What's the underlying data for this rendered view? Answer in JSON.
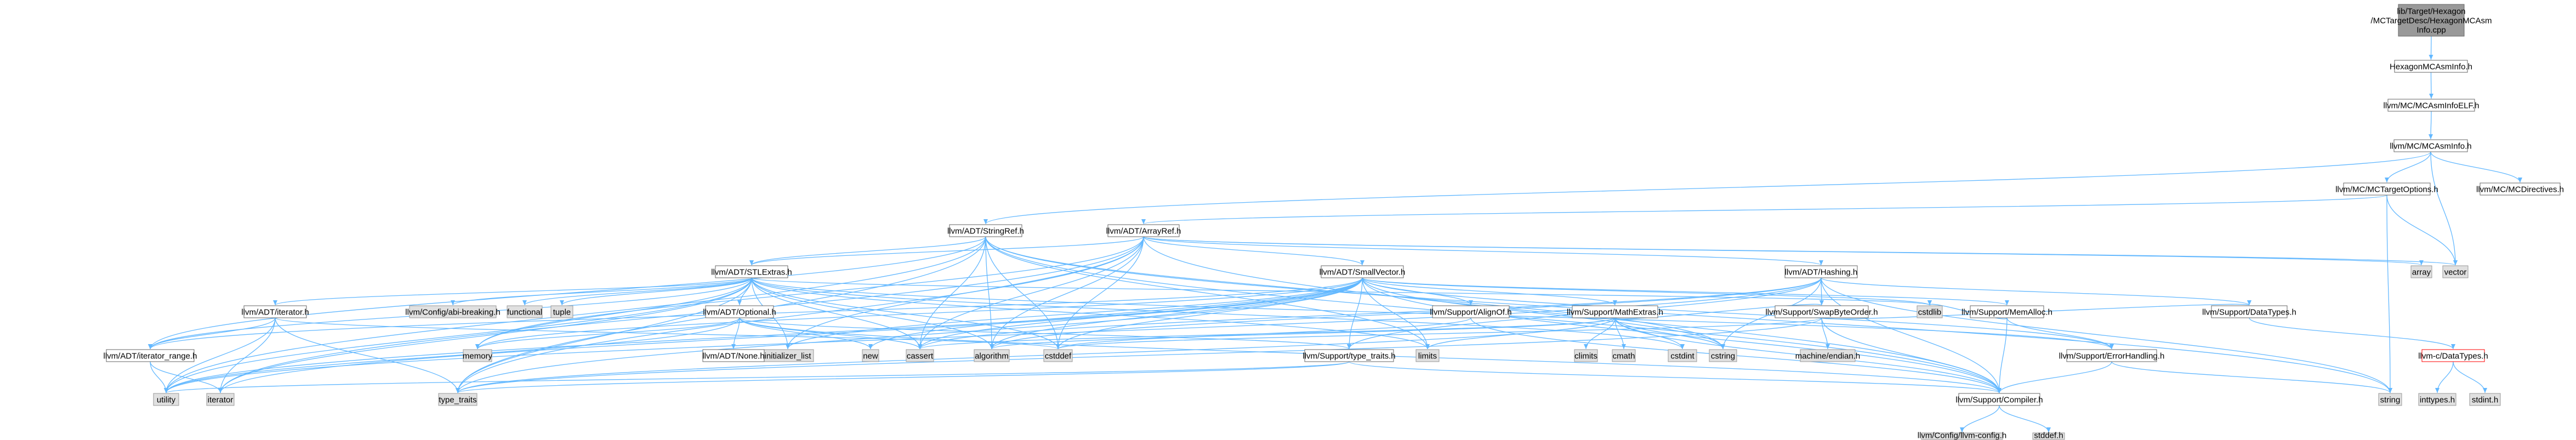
{
  "diagram": {
    "title": "lib/Target/Hexagon/MCTargetDesc/HexagonMCAsmInfo.cpp include dependency graph",
    "colors": {
      "edge": "#63B8FF",
      "root_fill": "#999999",
      "root_stroke": "#666666",
      "node_fill": "#ffffff",
      "node_stroke": "#666666",
      "system_fill": "#e0e0e0",
      "system_stroke": "#999999",
      "truncated_stroke": "#ff0000"
    },
    "nodes": [
      {
        "id": "root",
        "kind": "root",
        "lines": [
          "lib/Target/Hexagon",
          "/MCTargetDesc/HexagonMCAsm",
          "Info.cpp"
        ]
      },
      {
        "id": "hexagonmcasminfo_h",
        "kind": "file",
        "lines": [
          "HexagonMCAsmInfo.h"
        ]
      },
      {
        "id": "mcasminfoelf_h",
        "kind": "file",
        "lines": [
          "llvm/MC/MCAsmInfoELF.h"
        ]
      },
      {
        "id": "mcasminfo_h",
        "kind": "file",
        "lines": [
          "llvm/MC/MCAsmInfo.h"
        ]
      },
      {
        "id": "mctargetoptions_h",
        "kind": "file",
        "lines": [
          "llvm/MC/MCTargetOptions.h"
        ]
      },
      {
        "id": "mcdirectives_h",
        "kind": "file",
        "lines": [
          "llvm/MC/MCDirectives.h"
        ]
      },
      {
        "id": "stringref_h",
        "kind": "file",
        "lines": [
          "llvm/ADT/StringRef.h"
        ]
      },
      {
        "id": "arrayref_h",
        "kind": "file",
        "lines": [
          "llvm/ADT/ArrayRef.h"
        ]
      },
      {
        "id": "array",
        "kind": "system",
        "lines": [
          "array"
        ]
      },
      {
        "id": "vector",
        "kind": "system",
        "lines": [
          "vector"
        ]
      },
      {
        "id": "stlextras_h",
        "kind": "file",
        "lines": [
          "llvm/ADT/STLExtras.h"
        ]
      },
      {
        "id": "smallvector_h",
        "kind": "file",
        "lines": [
          "llvm/ADT/SmallVector.h"
        ]
      },
      {
        "id": "hashing_h",
        "kind": "file",
        "lines": [
          "llvm/ADT/Hashing.h"
        ]
      },
      {
        "id": "iterator_h",
        "kind": "file",
        "lines": [
          "llvm/ADT/iterator.h"
        ]
      },
      {
        "id": "configabi_h",
        "kind": "system",
        "lines": [
          "llvm/Config/abi-breaking.h"
        ]
      },
      {
        "id": "functional",
        "kind": "system",
        "lines": [
          "functional"
        ]
      },
      {
        "id": "tuple",
        "kind": "system",
        "lines": [
          "tuple"
        ]
      },
      {
        "id": "optional_h",
        "kind": "file",
        "lines": [
          "llvm/ADT/Optional.h"
        ]
      },
      {
        "id": "initializer_list",
        "kind": "system",
        "lines": [
          "initializer_list"
        ]
      },
      {
        "id": "alignof_h",
        "kind": "file",
        "lines": [
          "llvm/Support/AlignOf.h"
        ]
      },
      {
        "id": "mathextras_h",
        "kind": "file",
        "lines": [
          "llvm/Support/MathExtras.h"
        ]
      },
      {
        "id": "swapbyteorder_h",
        "kind": "file",
        "lines": [
          "llvm/Support/SwapByteOrder.h"
        ]
      },
      {
        "id": "memalloc_h",
        "kind": "file",
        "lines": [
          "llvm/Support/MemAlloc.h"
        ]
      },
      {
        "id": "datatypes_h",
        "kind": "file",
        "lines": [
          "llvm/Support/DataTypes.h"
        ]
      },
      {
        "id": "iterator_range_h",
        "kind": "file",
        "lines": [
          "llvm/ADT/iterator_range.h"
        ]
      },
      {
        "id": "memory",
        "kind": "system",
        "lines": [
          "memory"
        ]
      },
      {
        "id": "none_h",
        "kind": "file",
        "lines": [
          "llvm/ADT/None.h"
        ]
      },
      {
        "id": "new",
        "kind": "system",
        "lines": [
          "new"
        ]
      },
      {
        "id": "cassert",
        "kind": "system",
        "lines": [
          "cassert"
        ]
      },
      {
        "id": "algorithm",
        "kind": "system",
        "lines": [
          "algorithm"
        ]
      },
      {
        "id": "cstddef",
        "kind": "system",
        "lines": [
          "cstddef"
        ]
      },
      {
        "id": "type_traits_h",
        "kind": "file",
        "lines": [
          "llvm/Support/type_traits.h"
        ]
      },
      {
        "id": "limits",
        "kind": "system",
        "lines": [
          "limits"
        ]
      },
      {
        "id": "climits",
        "kind": "system",
        "lines": [
          "climits"
        ]
      },
      {
        "id": "cmath",
        "kind": "system",
        "lines": [
          "cmath"
        ]
      },
      {
        "id": "cstdint",
        "kind": "system",
        "lines": [
          "cstdint"
        ]
      },
      {
        "id": "cstring",
        "kind": "system",
        "lines": [
          "cstring"
        ]
      },
      {
        "id": "machine_endian",
        "kind": "system",
        "lines": [
          "machine/endian.h"
        ]
      },
      {
        "id": "cstdlib",
        "kind": "system",
        "lines": [
          "cstdlib"
        ]
      },
      {
        "id": "errorhandling_h",
        "kind": "file",
        "lines": [
          "llvm/Support/ErrorHandling.h"
        ]
      },
      {
        "id": "llvm_c_datatypes_h",
        "kind": "truncated",
        "lines": [
          "llvm-c/DataTypes.h"
        ]
      },
      {
        "id": "utility",
        "kind": "system",
        "lines": [
          "utility"
        ]
      },
      {
        "id": "iterator",
        "kind": "system",
        "lines": [
          "iterator"
        ]
      },
      {
        "id": "type_traits",
        "kind": "system",
        "lines": [
          "type_traits"
        ]
      },
      {
        "id": "compiler_h",
        "kind": "file",
        "lines": [
          "llvm/Support/Compiler.h"
        ]
      },
      {
        "id": "string",
        "kind": "system",
        "lines": [
          "string"
        ]
      },
      {
        "id": "inttypes_h",
        "kind": "system",
        "lines": [
          "inttypes.h"
        ]
      },
      {
        "id": "stdint_h",
        "kind": "system",
        "lines": [
          "stdint.h"
        ]
      },
      {
        "id": "llvm_config_h",
        "kind": "system",
        "lines": [
          "llvm/Config/llvm-config.h"
        ]
      },
      {
        "id": "stddef_h",
        "kind": "system",
        "lines": [
          "stddef.h"
        ]
      }
    ],
    "edges": [
      [
        "root",
        "hexagonmcasminfo_h"
      ],
      [
        "hexagonmcasminfo_h",
        "mcasminfoelf_h"
      ],
      [
        "mcasminfoelf_h",
        "mcasminfo_h"
      ],
      [
        "mcasminfo_h",
        "stringref_h"
      ],
      [
        "mcasminfo_h",
        "mcdirectives_h"
      ],
      [
        "mcasminfo_h",
        "mctargetoptions_h"
      ],
      [
        "mcasminfo_h",
        "vector"
      ],
      [
        "mctargetoptions_h",
        "arrayref_h"
      ],
      [
        "mctargetoptions_h",
        "string"
      ],
      [
        "mctargetoptions_h",
        "vector"
      ],
      [
        "stringref_h",
        "stlextras_h"
      ],
      [
        "stringref_h",
        "iterator_range_h"
      ],
      [
        "stringref_h",
        "compiler_h"
      ],
      [
        "stringref_h",
        "algorithm"
      ],
      [
        "stringref_h",
        "cassert"
      ],
      [
        "stringref_h",
        "cstddef"
      ],
      [
        "stringref_h",
        "cstring"
      ],
      [
        "stringref_h",
        "limits"
      ],
      [
        "stringref_h",
        "string"
      ],
      [
        "stringref_h",
        "type_traits"
      ],
      [
        "stringref_h",
        "utility"
      ],
      [
        "arrayref_h",
        "hashing_h"
      ],
      [
        "arrayref_h",
        "smallvector_h"
      ],
      [
        "arrayref_h",
        "stlextras_h"
      ],
      [
        "arrayref_h",
        "compiler_h"
      ],
      [
        "arrayref_h",
        "algorithm"
      ],
      [
        "arrayref_h",
        "array"
      ],
      [
        "arrayref_h",
        "cassert"
      ],
      [
        "arrayref_h",
        "cstddef"
      ],
      [
        "arrayref_h",
        "initializer_list"
      ],
      [
        "arrayref_h",
        "iterator"
      ],
      [
        "arrayref_h",
        "memory"
      ],
      [
        "arrayref_h",
        "type_traits"
      ],
      [
        "arrayref_h",
        "vector"
      ],
      [
        "stlextras_h",
        "iterator_h"
      ],
      [
        "stlextras_h",
        "iterator_range_h"
      ],
      [
        "stlextras_h",
        "optional_h"
      ],
      [
        "stlextras_h",
        "configabi_h"
      ],
      [
        "stlextras_h",
        "errorhandling_h"
      ],
      [
        "stlextras_h",
        "algorithm"
      ],
      [
        "stlextras_h",
        "cassert"
      ],
      [
        "stlextras_h",
        "cstddef"
      ],
      [
        "stlextras_h",
        "cstdint"
      ],
      [
        "stlextras_h",
        "cstdlib"
      ],
      [
        "stlextras_h",
        "functional"
      ],
      [
        "stlextras_h",
        "initializer_list"
      ],
      [
        "stlextras_h",
        "iterator"
      ],
      [
        "stlextras_h",
        "limits"
      ],
      [
        "stlextras_h",
        "memory"
      ],
      [
        "stlextras_h",
        "tuple"
      ],
      [
        "stlextras_h",
        "type_traits"
      ],
      [
        "stlextras_h",
        "utility"
      ],
      [
        "smallvector_h",
        "alignof_h"
      ],
      [
        "smallvector_h",
        "compiler_h"
      ],
      [
        "smallvector_h",
        "errorhandling_h"
      ],
      [
        "smallvector_h",
        "mathextras_h"
      ],
      [
        "smallvector_h",
        "memalloc_h"
      ],
      [
        "smallvector_h",
        "type_traits_h"
      ],
      [
        "smallvector_h",
        "iterator_range_h"
      ],
      [
        "smallvector_h",
        "algorithm"
      ],
      [
        "smallvector_h",
        "cassert"
      ],
      [
        "smallvector_h",
        "cstddef"
      ],
      [
        "smallvector_h",
        "cstdlib"
      ],
      [
        "smallvector_h",
        "cstring"
      ],
      [
        "smallvector_h",
        "initializer_list"
      ],
      [
        "smallvector_h",
        "iterator"
      ],
      [
        "smallvector_h",
        "limits"
      ],
      [
        "smallvector_h",
        "memory"
      ],
      [
        "smallvector_h",
        "new"
      ],
      [
        "smallvector_h",
        "type_traits"
      ],
      [
        "smallvector_h",
        "utility"
      ],
      [
        "hashing_h",
        "compiler_h"
      ],
      [
        "hashing_h",
        "datatypes_h"
      ],
      [
        "hashing_h",
        "swapbyteorder_h"
      ],
      [
        "hashing_h",
        "type_traits_h"
      ],
      [
        "hashing_h",
        "algorithm"
      ],
      [
        "hashing_h",
        "cassert"
      ],
      [
        "hashing_h",
        "cstring"
      ],
      [
        "hashing_h",
        "string"
      ],
      [
        "hashing_h",
        "utility"
      ],
      [
        "iterator_h",
        "iterator_range_h"
      ],
      [
        "iterator_h",
        "cstddef"
      ],
      [
        "iterator_h",
        "iterator"
      ],
      [
        "iterator_h",
        "type_traits"
      ],
      [
        "iterator_h",
        "utility"
      ],
      [
        "optional_h",
        "none_h"
      ],
      [
        "optional_h",
        "compiler_h"
      ],
      [
        "optional_h",
        "type_traits_h"
      ],
      [
        "optional_h",
        "cassert"
      ],
      [
        "optional_h",
        "memory"
      ],
      [
        "optional_h",
        "new"
      ],
      [
        "optional_h",
        "utility"
      ],
      [
        "alignof_h",
        "compiler_h"
      ],
      [
        "alignof_h",
        "cstddef"
      ],
      [
        "mathextras_h",
        "compiler_h"
      ],
      [
        "mathextras_h",
        "swapbyteorder_h"
      ],
      [
        "mathextras_h",
        "algorithm"
      ],
      [
        "mathextras_h",
        "cassert"
      ],
      [
        "mathextras_h",
        "climits"
      ],
      [
        "mathextras_h",
        "cmath"
      ],
      [
        "mathextras_h",
        "cstdint"
      ],
      [
        "mathextras_h",
        "cstring"
      ],
      [
        "mathextras_h",
        "limits"
      ],
      [
        "mathextras_h",
        "type_traits"
      ],
      [
        "swapbyteorder_h",
        "compiler_h"
      ],
      [
        "swapbyteorder_h",
        "datatypes_h"
      ],
      [
        "swapbyteorder_h",
        "cstddef"
      ],
      [
        "swapbyteorder_h",
        "type_traits"
      ],
      [
        "swapbyteorder_h",
        "machine_endian"
      ],
      [
        "memalloc_h",
        "compiler_h"
      ],
      [
        "memalloc_h",
        "errorhandling_h"
      ],
      [
        "memalloc_h",
        "cstdlib"
      ],
      [
        "datatypes_h",
        "llvm_c_datatypes_h"
      ],
      [
        "type_traits_h",
        "compiler_h"
      ],
      [
        "type_traits_h",
        "type_traits"
      ],
      [
        "type_traits_h",
        "utility"
      ],
      [
        "iterator_range_h",
        "iterator"
      ],
      [
        "iterator_range_h",
        "utility"
      ],
      [
        "errorhandling_h",
        "compiler_h"
      ],
      [
        "errorhandling_h",
        "string"
      ],
      [
        "llvm_c_datatypes_h",
        "inttypes_h"
      ],
      [
        "llvm_c_datatypes_h",
        "stdint_h"
      ],
      [
        "compiler_h",
        "llvm_config_h"
      ],
      [
        "compiler_h",
        "stddef_h"
      ]
    ]
  }
}
